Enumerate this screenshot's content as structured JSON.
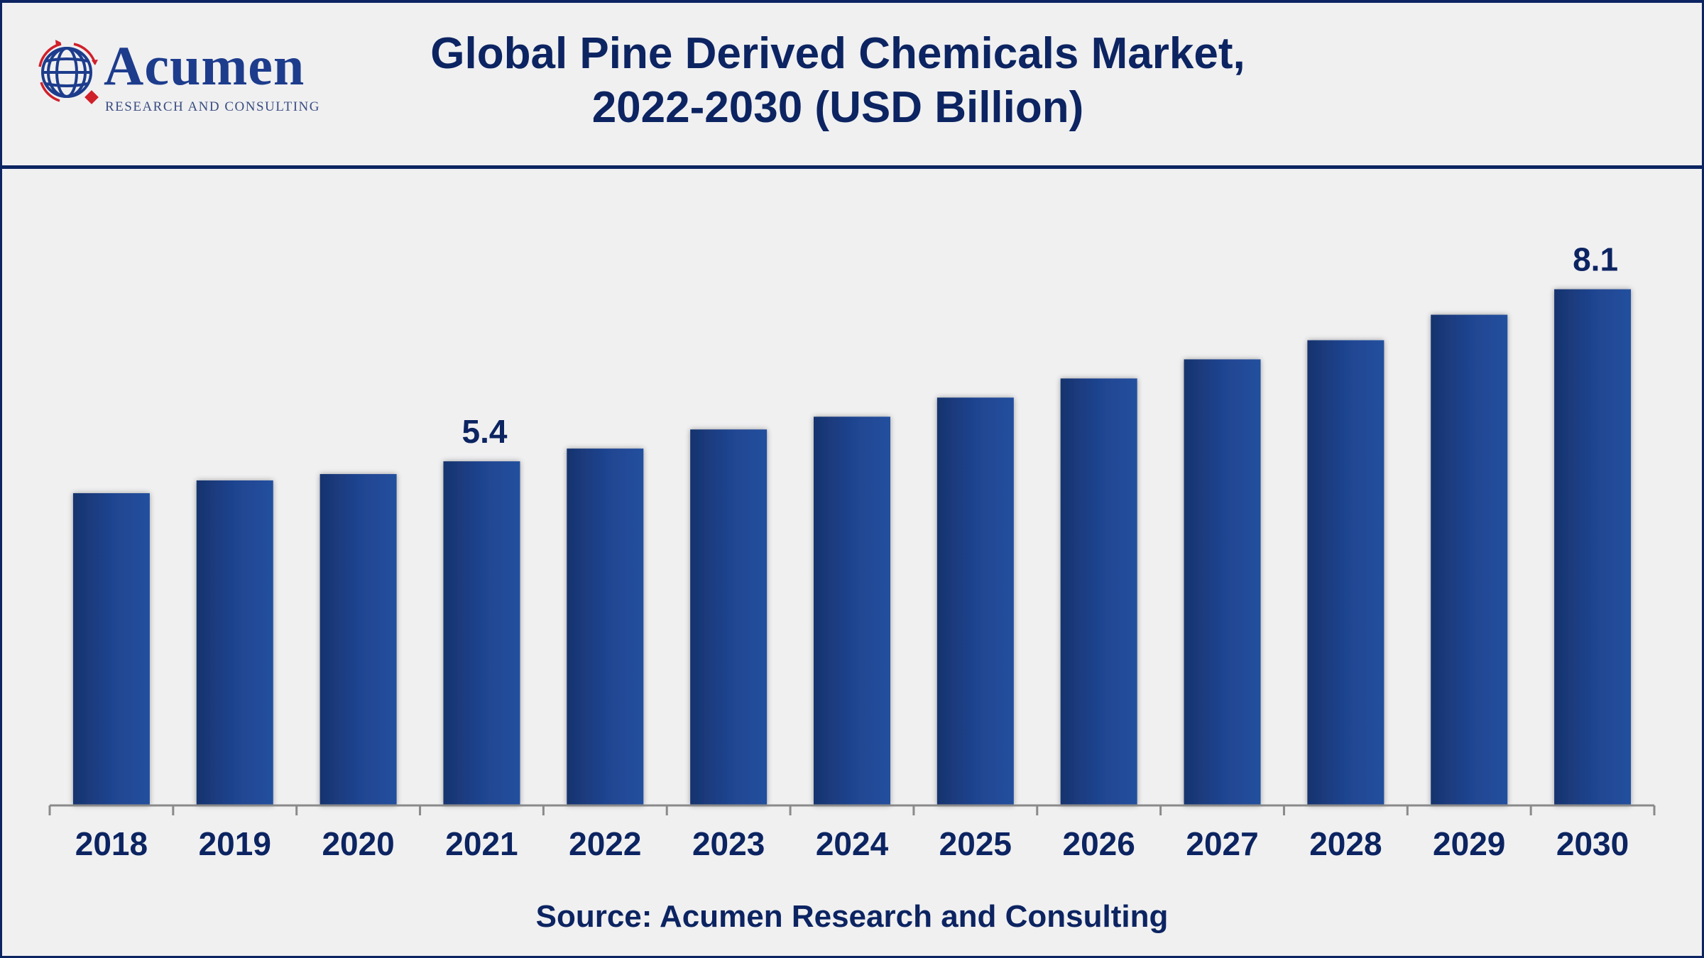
{
  "logo": {
    "name": "Acumen",
    "tagline": "RESEARCH AND CONSULTING"
  },
  "title_line1": "Global Pine Derived Chemicals Market,",
  "title_line2": "2022-2030 (USD Billion)",
  "source": "Source: Acumen Research and Consulting",
  "colors": {
    "bar": "#1f4490",
    "bar_dark": "#17336d",
    "text": "#0c2461",
    "axis": "#8a8a8a",
    "background": "#f0f0f1"
  },
  "chart_data": {
    "type": "bar",
    "title": "Global Pine Derived Chemicals Market, 2022-2030 (USD Billion)",
    "xlabel": "",
    "ylabel": "USD Billion",
    "categories": [
      "2018",
      "2019",
      "2020",
      "2021",
      "2022",
      "2023",
      "2024",
      "2025",
      "2026",
      "2027",
      "2028",
      "2029",
      "2030"
    ],
    "values": [
      4.9,
      5.1,
      5.2,
      5.4,
      5.6,
      5.9,
      6.1,
      6.4,
      6.7,
      7.0,
      7.3,
      7.7,
      8.1
    ],
    "data_labels": [
      {
        "category": "2021",
        "text": "5.4"
      },
      {
        "category": "2030",
        "text": "8.1"
      }
    ],
    "ylim": [
      0,
      8.1
    ],
    "grid": false,
    "legend": "none"
  }
}
